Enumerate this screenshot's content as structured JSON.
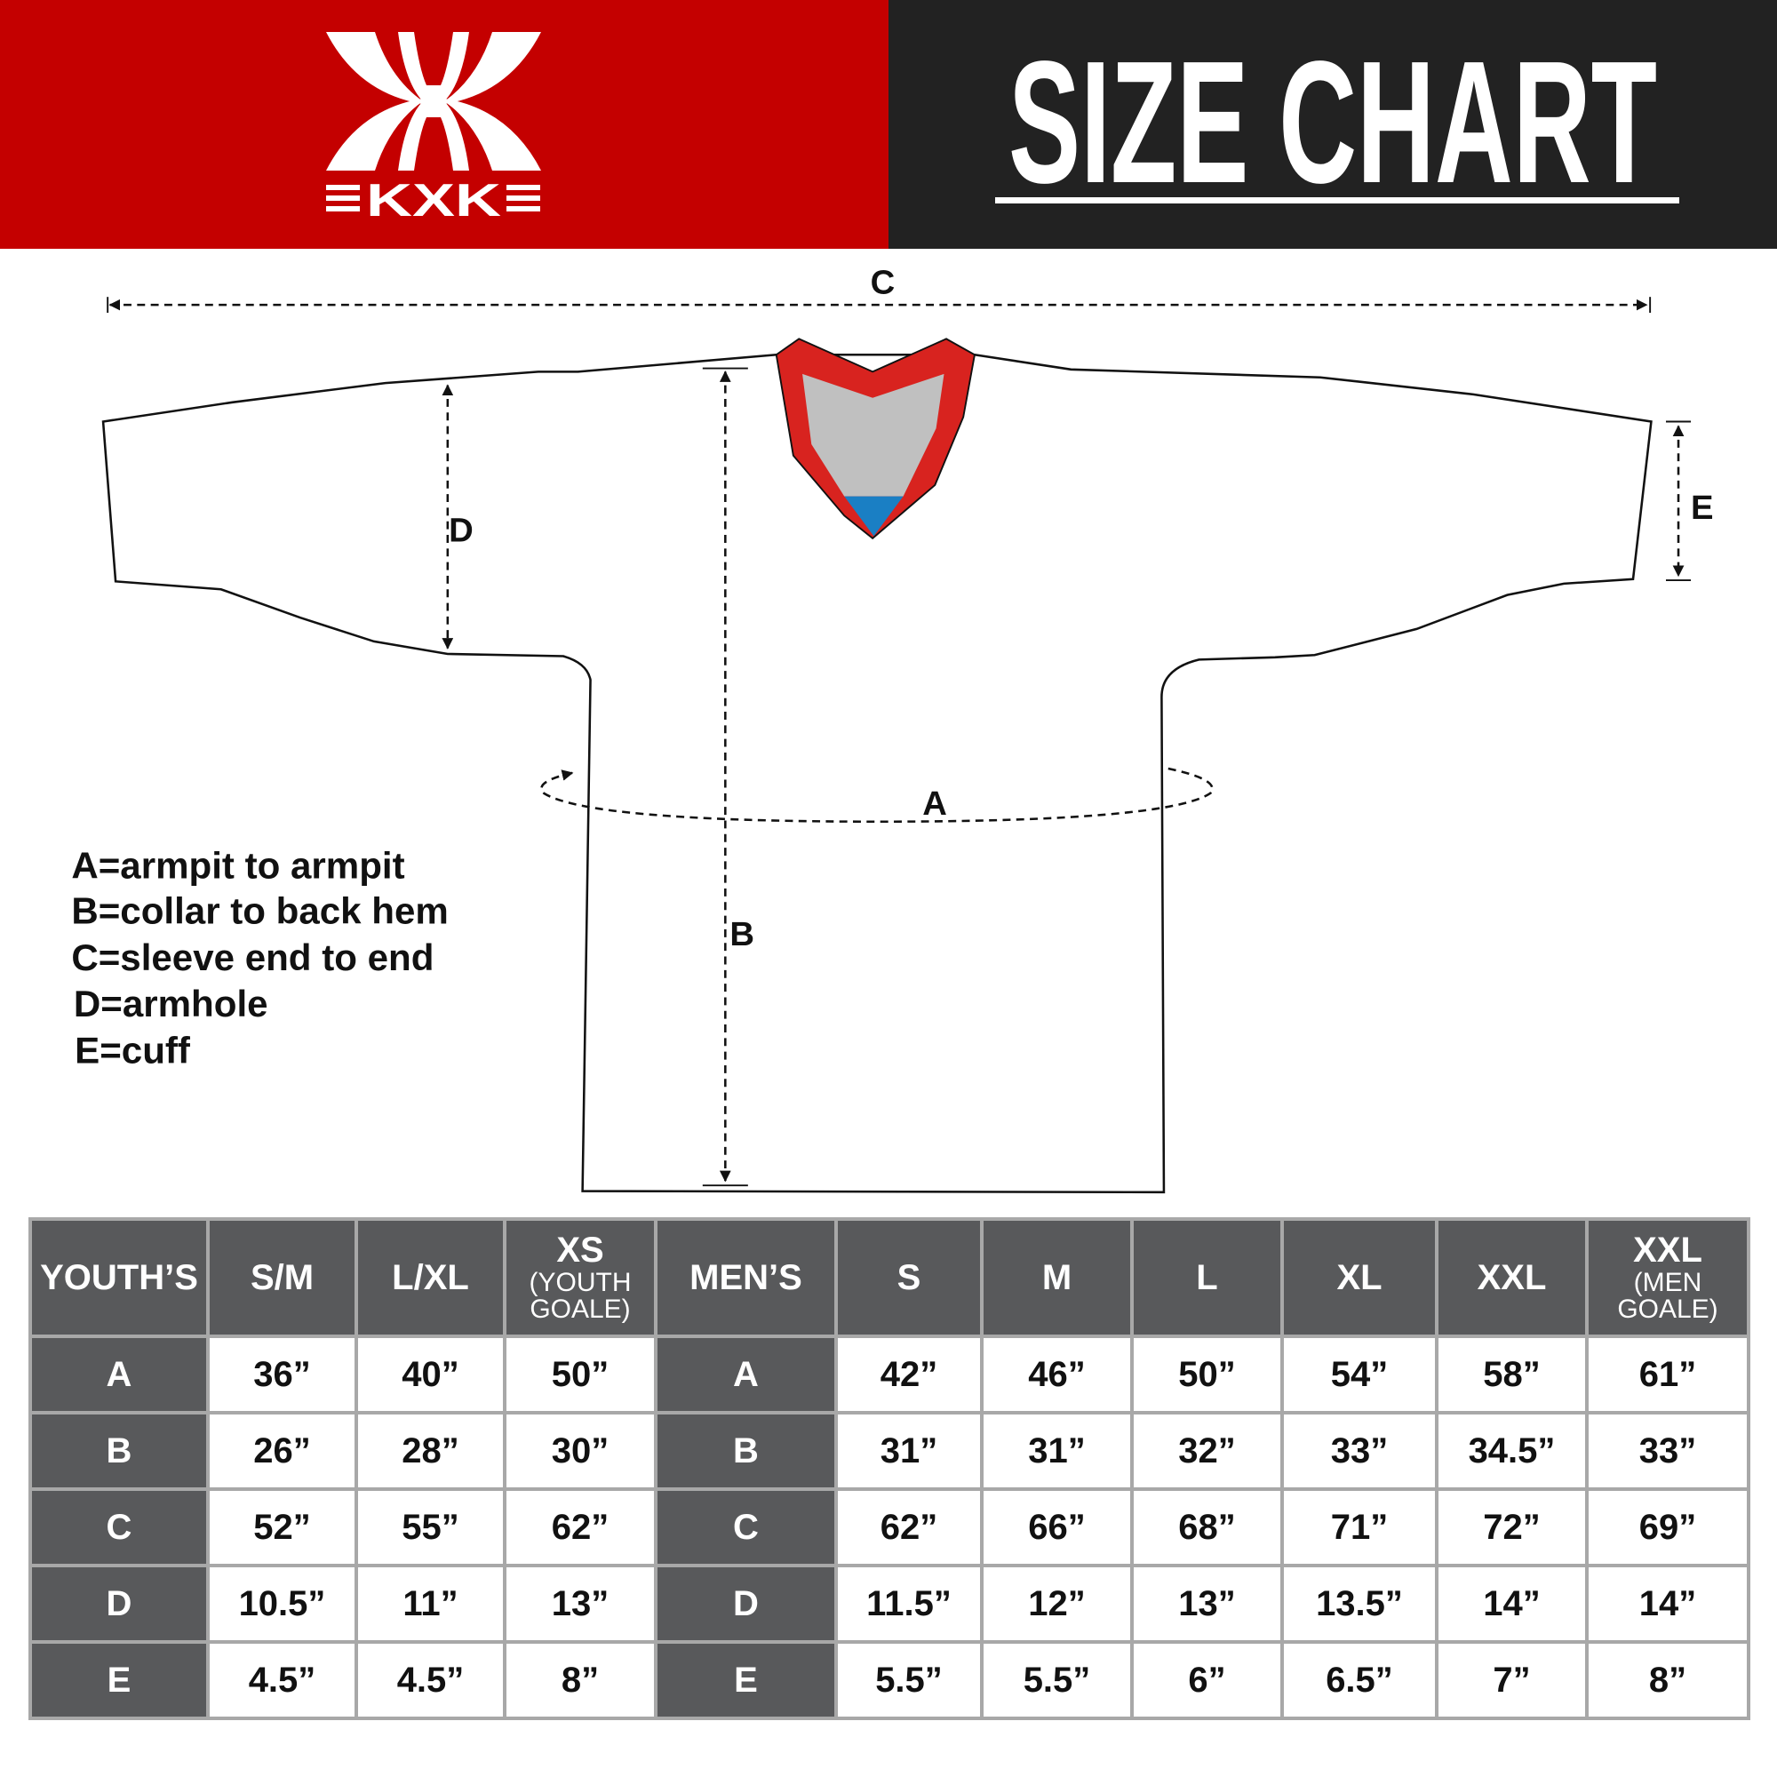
{
  "brand": {
    "logo_text": "KXK",
    "red": "#c40000",
    "dark": "#222222"
  },
  "title": "SIZE CHART",
  "diagram": {
    "labels": {
      "A": "A",
      "B": "B",
      "C": "C",
      "D": "D",
      "E": "E"
    },
    "legend": [
      "A=armpit to armpit",
      "B=collar to back hem",
      "C=sleeve end to end",
      "D=armhole",
      "E=cuff"
    ],
    "collar_colors": {
      "trim": "#d8231f",
      "inner": "#c0c0c0",
      "tag": "#1a7fc4"
    }
  },
  "table": {
    "youth_header": "YOUTH’S",
    "men_header": "MEN’S",
    "youth_sizes": [
      {
        "main": "S/M",
        "sub": ""
      },
      {
        "main": "L/XL",
        "sub": ""
      },
      {
        "main": "XS",
        "sub": "(YOUTH GOALE)"
      }
    ],
    "men_sizes": [
      {
        "main": "S",
        "sub": ""
      },
      {
        "main": "M",
        "sub": ""
      },
      {
        "main": "L",
        "sub": ""
      },
      {
        "main": "XL",
        "sub": ""
      },
      {
        "main": "XXL",
        "sub": ""
      },
      {
        "main": "XXL",
        "sub": "(MEN GOALE)"
      }
    ],
    "rows": [
      {
        "label": "A",
        "youth": [
          "36”",
          "40”",
          "50”"
        ],
        "men": [
          "42”",
          "46”",
          "50”",
          "54”",
          "58”",
          "61”"
        ]
      },
      {
        "label": "B",
        "youth": [
          "26”",
          "28”",
          "30”"
        ],
        "men": [
          "31”",
          "31”",
          "32”",
          "33”",
          "34.5”",
          "33”"
        ]
      },
      {
        "label": "C",
        "youth": [
          "52”",
          "55”",
          "62”"
        ],
        "men": [
          "62”",
          "66”",
          "68”",
          "71”",
          "72”",
          "69”"
        ]
      },
      {
        "label": "D",
        "youth": [
          "10.5”",
          "11”",
          "13”"
        ],
        "men": [
          "11.5”",
          "12”",
          "13”",
          "13.5”",
          "14”",
          "14”"
        ]
      },
      {
        "label": "E",
        "youth": [
          "4.5”",
          "4.5”",
          "8”"
        ],
        "men": [
          "5.5”",
          "5.5”",
          "6”",
          "6.5”",
          "7”",
          "8”"
        ]
      }
    ]
  }
}
